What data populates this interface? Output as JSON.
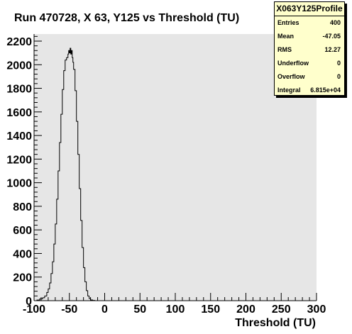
{
  "title": "Run 470728, X 63, Y125 vs Threshold (TU)",
  "stats": {
    "name": "X063Y125Profile",
    "rows": [
      {
        "label": "Entries",
        "value": "400"
      },
      {
        "label": "Mean",
        "value": "-47.05"
      },
      {
        "label": "RMS",
        "value": "12.27"
      },
      {
        "label": "Underflow",
        "value": "0"
      },
      {
        "label": "Overflow",
        "value": "0"
      },
      {
        "label": "Integral",
        "value": "6.815e+04"
      }
    ]
  },
  "colors": {
    "plot_bg": "#e6e6e6",
    "line": "#000000",
    "stats_bg": "#ffffcc"
  },
  "chart_data": {
    "type": "histogram",
    "title": "Run 470728, X 63, Y125 vs Threshold (TU)",
    "xlabel": "Threshold (TU)",
    "ylabel": "",
    "xlim": [
      -100,
      300
    ],
    "ylim": [
      0,
      2260
    ],
    "xticks": [
      -100,
      -50,
      0,
      50,
      100,
      150,
      200,
      250,
      300
    ],
    "yticks": [
      0,
      200,
      400,
      600,
      800,
      1000,
      1200,
      1400,
      1600,
      1800,
      2000,
      2200
    ],
    "grid": false,
    "bins": 400,
    "points": [
      [
        -100,
        0
      ],
      [
        -96,
        5
      ],
      [
        -92,
        15
      ],
      [
        -88,
        25
      ],
      [
        -85,
        40
      ],
      [
        -82,
        70
      ],
      [
        -80,
        100
      ],
      [
        -78,
        150
      ],
      [
        -76,
        230
      ],
      [
        -74,
        330
      ],
      [
        -72,
        480
      ],
      [
        -70,
        650
      ],
      [
        -68,
        860
      ],
      [
        -66,
        1100
      ],
      [
        -64,
        1340
      ],
      [
        -62,
        1580
      ],
      [
        -60,
        1790
      ],
      [
        -58,
        1950
      ],
      [
        -56,
        2040
      ],
      [
        -54,
        2060
      ],
      [
        -52,
        2090
      ],
      [
        -51,
        2120
      ],
      [
        -50,
        2100
      ],
      [
        -49,
        2140
      ],
      [
        -48,
        2090
      ],
      [
        -47,
        2120
      ],
      [
        -46,
        2060
      ],
      [
        -45,
        2020
      ],
      [
        -44,
        1960
      ],
      [
        -42,
        1780
      ],
      [
        -40,
        1520
      ],
      [
        -38,
        1240
      ],
      [
        -36,
        950
      ],
      [
        -34,
        680
      ],
      [
        -32,
        450
      ],
      [
        -30,
        280
      ],
      [
        -28,
        160
      ],
      [
        -26,
        85
      ],
      [
        -24,
        40
      ],
      [
        -22,
        18
      ],
      [
        -20,
        6
      ],
      [
        -17,
        2
      ],
      [
        -14,
        0
      ]
    ]
  }
}
